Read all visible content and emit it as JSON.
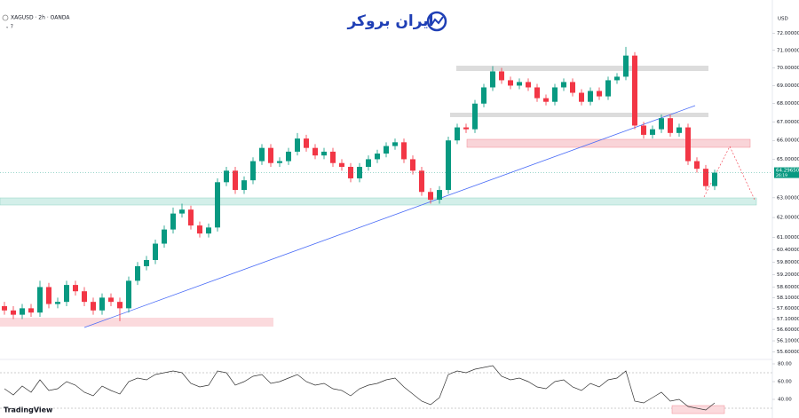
{
  "chart_data": {
    "type": "candlestick",
    "title": "XAGUSD · 2h · OANDA",
    "currency": "USD",
    "log_scale": true,
    "up_color": "#089981",
    "down_color": "#f23645",
    "ylim": [
      55.26,
      73.96
    ],
    "yticks": [
      {
        "value": 72,
        "label": "72.00000"
      },
      {
        "value": 71,
        "label": "71.00000"
      },
      {
        "value": 70,
        "label": "70.00000"
      },
      {
        "value": 69,
        "label": "69.00000"
      },
      {
        "value": 68,
        "label": "68.00000"
      },
      {
        "value": 67,
        "label": "67.00000"
      },
      {
        "value": 66,
        "label": "66.00000"
      },
      {
        "value": 65,
        "label": "65.00000"
      },
      {
        "value": 63,
        "label": "63.00000"
      },
      {
        "value": 62,
        "label": "62.00000"
      },
      {
        "value": 61,
        "label": "61.00000"
      },
      {
        "value": 60.4,
        "label": "60.40000"
      },
      {
        "value": 59.8,
        "label": "59.80000"
      },
      {
        "value": 59.2,
        "label": "59.20000"
      },
      {
        "value": 58.6,
        "label": "58.60000"
      },
      {
        "value": 58.1,
        "label": "58.10000"
      },
      {
        "value": 57.6,
        "label": "57.60000"
      },
      {
        "value": 57.1,
        "label": "57.10000"
      },
      {
        "value": 56.6,
        "label": "56.60000"
      },
      {
        "value": 56.1,
        "label": "56.10000"
      },
      {
        "value": 55.6,
        "label": "55.60000"
      }
    ],
    "open": [
      57.7,
      57.5,
      57.3,
      57.6,
      57.4,
      58.6,
      57.8,
      57.9,
      58.7,
      58.4,
      57.9,
      57.5,
      58.1,
      57.9,
      57.6,
      58.9,
      59.6,
      59.9,
      60.7,
      61.4,
      62.2,
      62.4,
      61.6,
      61.2,
      61.5,
      63.8,
      64.4,
      63.4,
      63.9,
      64.9,
      65.6,
      64.8,
      64.9,
      65.4,
      66.1,
      65.6,
      65.2,
      65.4,
      64.8,
      64.6,
      64.0,
      64.6,
      65.0,
      65.3,
      65.7,
      65.9,
      65.0,
      64.4,
      63.3,
      62.9,
      63.4,
      66.0,
      66.7,
      66.6,
      68.0,
      68.9,
      69.8,
      69.3,
      69.0,
      69.2,
      68.9,
      68.3,
      68.1,
      68.9,
      69.2,
      68.6,
      68.1,
      68.7,
      68.4,
      69.3,
      69.5,
      70.7,
      66.8,
      66.3,
      66.6,
      67.2,
      66.4,
      66.7,
      64.9,
      64.5,
      63.6
    ],
    "high": [
      57.9,
      57.7,
      57.8,
      57.8,
      58.9,
      58.8,
      58.1,
      58.9,
      58.9,
      58.6,
      58.1,
      58.3,
      58.3,
      58.1,
      59.1,
      59.8,
      60.1,
      60.9,
      61.6,
      62.5,
      62.7,
      62.6,
      61.8,
      61.7,
      64.0,
      64.6,
      64.6,
      64.1,
      65.1,
      65.8,
      65.8,
      65.1,
      65.6,
      66.4,
      66.3,
      65.8,
      65.6,
      65.6,
      65.0,
      64.8,
      64.8,
      65.2,
      65.5,
      65.9,
      66.1,
      66.1,
      65.2,
      64.6,
      63.5,
      63.6,
      66.2,
      66.9,
      66.9,
      68.2,
      69.1,
      70.1,
      70.0,
      69.5,
      69.4,
      69.4,
      69.1,
      68.5,
      69.1,
      69.4,
      69.4,
      68.8,
      68.9,
      68.9,
      69.5,
      69.7,
      71.2,
      70.9,
      67.0,
      66.8,
      67.4,
      67.4,
      66.9,
      66.9,
      65.1,
      64.7,
      64.45
    ],
    "low": [
      57.3,
      57.1,
      57.1,
      57.2,
      57.2,
      57.6,
      57.6,
      57.7,
      58.2,
      57.7,
      57.3,
      57.3,
      57.7,
      57.0,
      57.4,
      58.7,
      59.4,
      59.7,
      60.5,
      61.2,
      62.0,
      61.4,
      61.0,
      61.0,
      61.3,
      63.6,
      63.2,
      63.2,
      63.7,
      64.7,
      64.6,
      64.6,
      64.7,
      65.2,
      65.4,
      65.0,
      65.0,
      64.6,
      64.4,
      63.8,
      63.8,
      64.4,
      64.8,
      65.1,
      65.5,
      64.8,
      64.2,
      63.1,
      62.7,
      62.7,
      63.2,
      65.8,
      66.4,
      66.4,
      67.8,
      68.7,
      69.1,
      68.8,
      68.8,
      68.7,
      68.1,
      67.9,
      67.9,
      68.7,
      68.4,
      67.9,
      67.9,
      68.2,
      68.2,
      69.1,
      69.3,
      66.6,
      66.1,
      66.1,
      66.4,
      66.2,
      66.2,
      64.7,
      64.3,
      63.4,
      63.4
    ],
    "close": [
      57.5,
      57.3,
      57.6,
      57.4,
      58.6,
      57.8,
      57.9,
      58.7,
      58.4,
      57.9,
      57.5,
      58.1,
      57.9,
      57.6,
      58.9,
      59.6,
      59.9,
      60.7,
      61.4,
      62.2,
      62.4,
      61.6,
      61.2,
      61.5,
      63.8,
      64.4,
      63.4,
      63.9,
      64.9,
      65.6,
      64.8,
      64.9,
      65.4,
      66.1,
      65.6,
      65.2,
      65.4,
      64.8,
      64.6,
      64.0,
      64.6,
      65.0,
      65.3,
      65.7,
      65.9,
      65.0,
      64.4,
      63.3,
      62.9,
      63.4,
      66.0,
      66.7,
      66.6,
      68.0,
      68.9,
      69.8,
      69.3,
      69.0,
      69.2,
      68.9,
      68.3,
      68.1,
      68.9,
      69.2,
      68.6,
      68.1,
      68.7,
      68.4,
      69.3,
      69.5,
      70.7,
      66.8,
      66.3,
      66.6,
      67.2,
      66.4,
      66.7,
      64.9,
      64.5,
      63.6,
      64.2965
    ],
    "last_price": {
      "value": 64.2965,
      "label": "64.29650"
    },
    "countdown": "26:19",
    "rsi": {
      "color": "#333333",
      "ylim": [
        25,
        85
      ],
      "yticks": [
        {
          "value": 80,
          "label": "80.00"
        },
        {
          "value": 60,
          "label": "60.00"
        },
        {
          "value": 40,
          "label": "40.00"
        }
      ],
      "values": [
        52,
        45,
        55,
        48,
        62,
        50,
        52,
        60,
        56,
        48,
        44,
        55,
        50,
        46,
        60,
        64,
        62,
        68,
        70,
        72,
        70,
        58,
        54,
        56,
        72,
        70,
        56,
        60,
        66,
        68,
        58,
        60,
        64,
        68,
        60,
        56,
        58,
        52,
        50,
        44,
        52,
        56,
        58,
        62,
        64,
        54,
        46,
        38,
        34,
        42,
        68,
        72,
        70,
        74,
        76,
        78,
        66,
        62,
        64,
        60,
        54,
        52,
        60,
        62,
        54,
        50,
        58,
        54,
        62,
        64,
        72,
        38,
        36,
        42,
        48,
        38,
        40,
        32,
        30,
        28,
        36
      ]
    }
  },
  "branding": {
    "logo_text": "ایران بروکر",
    "footer": "TradingView",
    "menu": "⌄ 7"
  }
}
